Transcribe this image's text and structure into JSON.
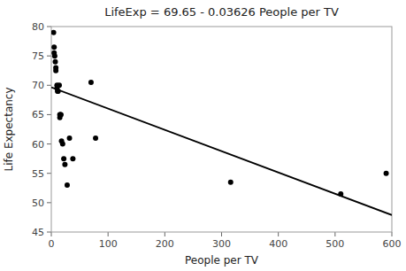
{
  "chart_data": {
    "type": "scatter",
    "title": "LifeExp = 69.65 - 0.03626 People per TV",
    "xlabel": "People per TV",
    "ylabel": "Life Expectancy",
    "xlim": [
      0,
      600
    ],
    "ylim": [
      45,
      80
    ],
    "xticks": [
      0,
      100,
      200,
      300,
      400,
      500,
      600
    ],
    "yticks": [
      45,
      50,
      55,
      60,
      65,
      70,
      75,
      80
    ],
    "grid": false,
    "series": [
      {
        "type": "scatter",
        "color": "#000000",
        "x": [
          4,
          5,
          5,
          6,
          7,
          8,
          8,
          10,
          10,
          11,
          12,
          14,
          15,
          15,
          16,
          17,
          18,
          20,
          22,
          24,
          28,
          32,
          38,
          70,
          78,
          316,
          510,
          590
        ],
        "values": [
          79,
          76.5,
          75.5,
          75,
          74,
          73,
          72.5,
          70,
          69.5,
          69,
          69,
          70,
          65,
          64.5,
          65,
          65,
          60.5,
          60,
          57.5,
          56.5,
          53,
          61,
          57.5,
          70.5,
          61,
          53.5,
          51.5,
          55
        ]
      },
      {
        "type": "line",
        "color": "#000000",
        "x": [
          0,
          600
        ],
        "values": [
          69.65,
          47.894
        ]
      }
    ]
  }
}
